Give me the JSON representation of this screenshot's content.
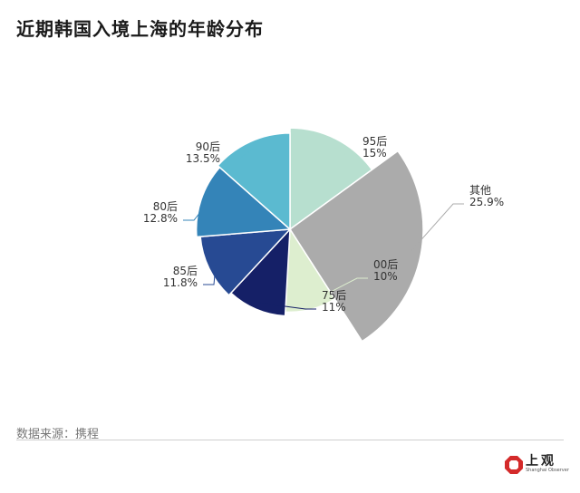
{
  "title": "近期韩国入境上海的年龄分布",
  "source": "数据来源：携程",
  "logo": {
    "text": "上观",
    "subtext": "Shanghai Observer",
    "color": "#d42a2a"
  },
  "chart_data": {
    "type": "pie",
    "variant": "nightingale",
    "title": "近期韩国入境上海的年龄分布",
    "categories": [
      "95后",
      "其他",
      "00后",
      "75后",
      "85后",
      "80后",
      "90后"
    ],
    "values": [
      15,
      25.9,
      10,
      11,
      11.8,
      12.8,
      13.5
    ],
    "value_labels": [
      "15%",
      "25.9%",
      "10%",
      "11%",
      "11.8%",
      "12.8%",
      "13.5%"
    ],
    "colors": [
      "#b7dfcf",
      "#ababab",
      "#ddeecf",
      "#152067",
      "#274a93",
      "#3484b8",
      "#5bbad0"
    ],
    "start_angle_deg": 0,
    "direction": "clockwise",
    "legend": "none"
  }
}
